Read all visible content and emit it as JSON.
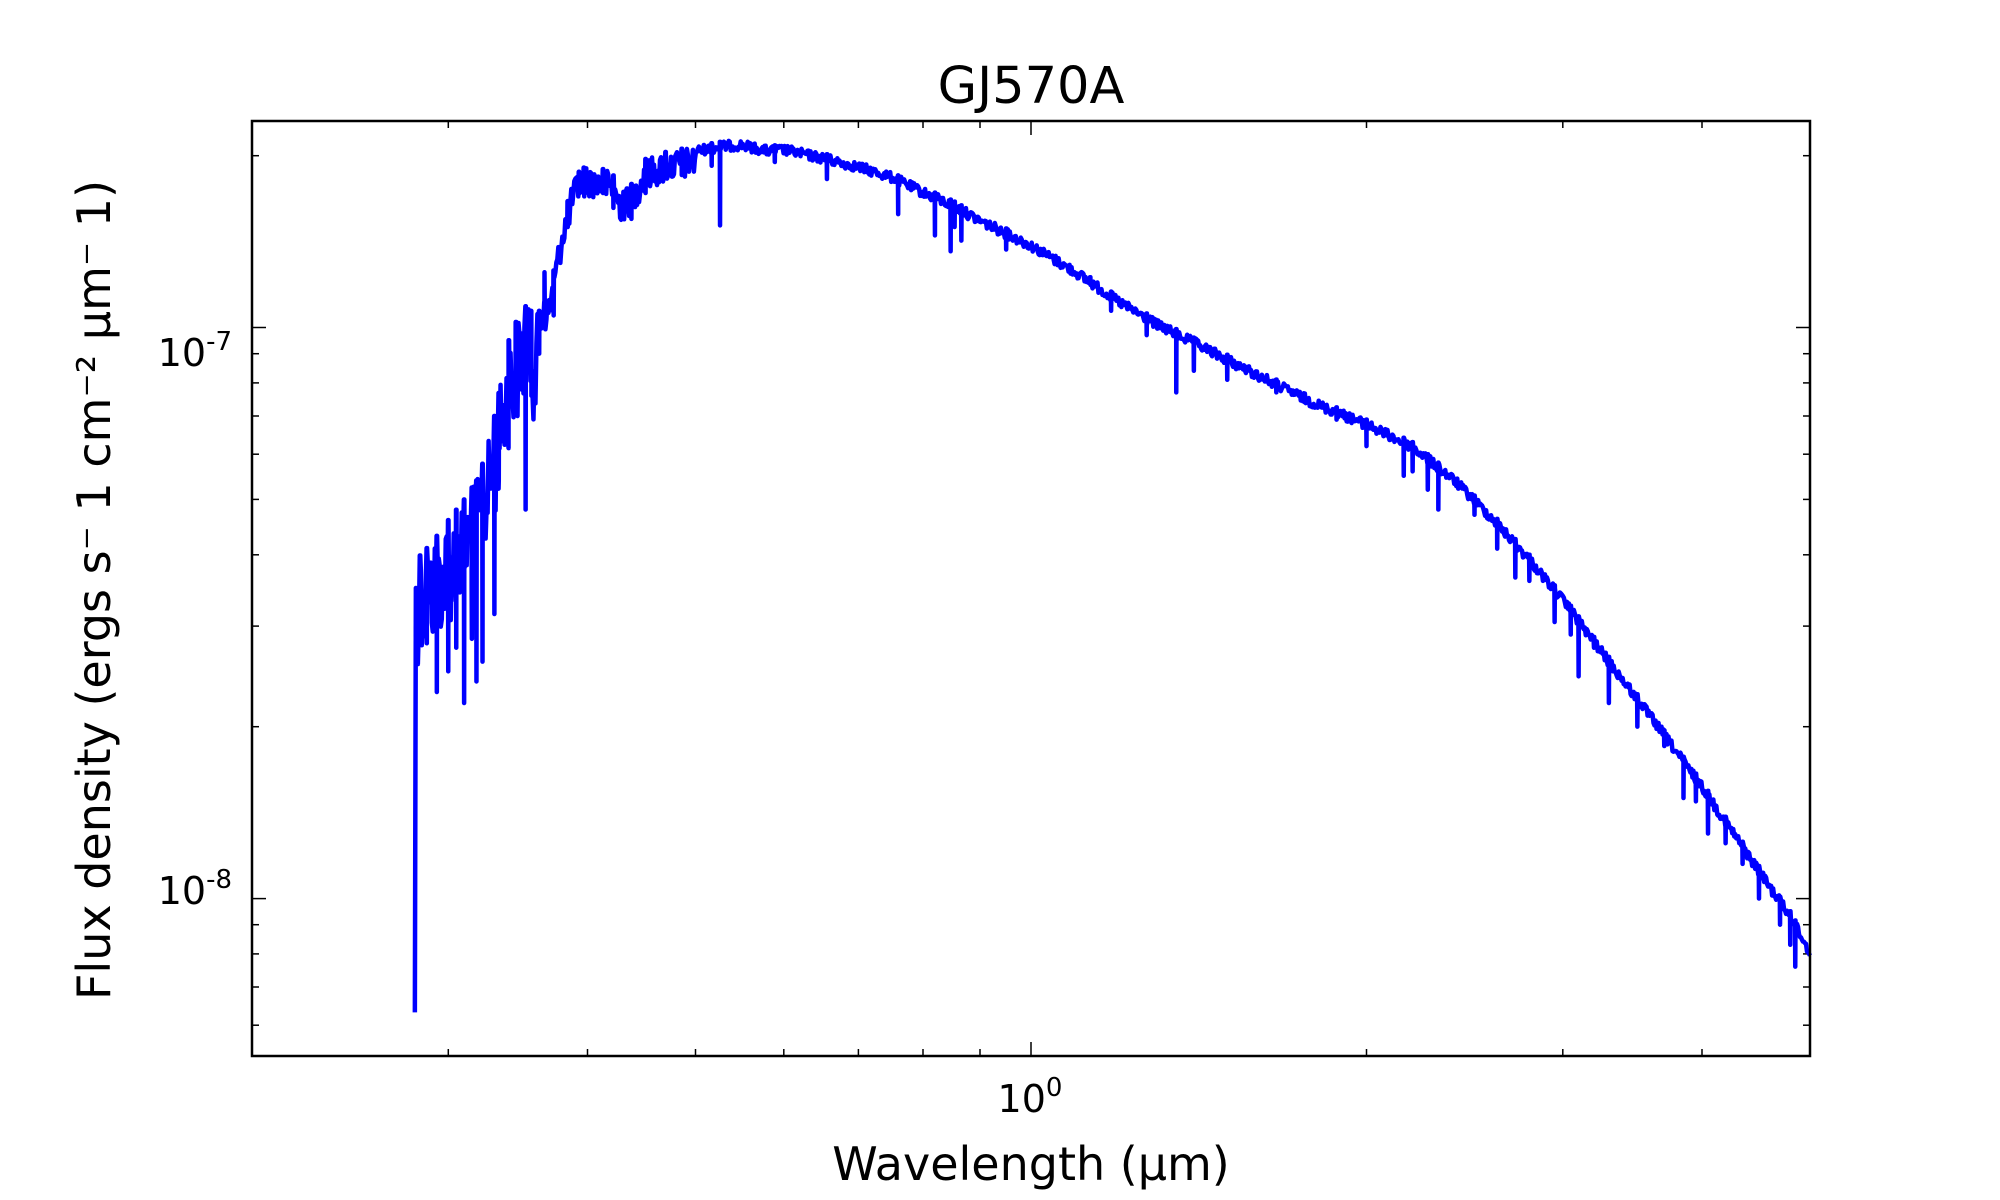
{
  "chart_data": {
    "type": "line",
    "title": "GJ570A",
    "xlabel": "Wavelength (μm)",
    "ylabel": "Flux density (ergs s⁻ 1 cm⁻² μm⁻ 1)",
    "xscale": "log",
    "yscale": "log",
    "xlim": [
      0.2,
      5.0
    ],
    "ylim": [
      5.3e-09,
      2.3e-07
    ],
    "grid": false,
    "legend": "none",
    "x_tick_labels": [
      {
        "value": 1.0,
        "base": "10",
        "exp": "0"
      }
    ],
    "y_tick_labels": [
      {
        "value": 1e-07,
        "base": "10",
        "exp": "-7"
      },
      {
        "value": 1e-08,
        "base": "10",
        "exp": "-8"
      }
    ],
    "series": [
      {
        "color": "#0000ff",
        "continuum": [
          [
            0.28,
            3.9e-08
          ],
          [
            0.29,
            4.2e-08
          ],
          [
            0.3,
            4.6e-08
          ],
          [
            0.31,
            5e-08
          ],
          [
            0.32,
            5.5e-08
          ],
          [
            0.33,
            7e-08
          ],
          [
            0.34,
            9.5e-08
          ],
          [
            0.35,
            1.1e-07
          ],
          [
            0.36,
            1.05e-07
          ],
          [
            0.37,
            1.15e-07
          ],
          [
            0.38,
            1.55e-07
          ],
          [
            0.39,
            1.85e-07
          ],
          [
            0.4,
            1.93e-07
          ],
          [
            0.41,
            1.9e-07
          ],
          [
            0.42,
            1.88e-07
          ],
          [
            0.43,
            1.72e-07
          ],
          [
            0.44,
            1.8e-07
          ],
          [
            0.45,
            1.97e-07
          ],
          [
            0.47,
            2.03e-07
          ],
          [
            0.5,
            2.08e-07
          ],
          [
            0.53,
            2.12e-07
          ],
          [
            0.55,
            2.13e-07
          ],
          [
            0.58,
            2.08e-07
          ],
          [
            0.6,
            2.09e-07
          ],
          [
            0.65,
            2.02e-07
          ],
          [
            0.7,
            1.95e-07
          ],
          [
            0.75,
            1.87e-07
          ],
          [
            0.8,
            1.76e-07
          ],
          [
            0.85,
            1.67e-07
          ],
          [
            0.9,
            1.57e-07
          ],
          [
            1.0,
            1.42e-07
          ],
          [
            1.1,
            1.27e-07
          ],
          [
            1.2,
            1.13e-07
          ],
          [
            1.3,
            1.03e-07
          ],
          [
            1.4,
            9.6e-08
          ],
          [
            1.6,
            8.4e-08
          ],
          [
            1.8,
            7.5e-08
          ],
          [
            2.0,
            6.9e-08
          ],
          [
            2.2,
            6.3e-08
          ],
          [
            2.4,
            5.5e-08
          ],
          [
            2.6,
            4.7e-08
          ],
          [
            2.8,
            4e-08
          ],
          [
            3.0,
            3.4e-08
          ],
          [
            3.3,
            2.65e-08
          ],
          [
            3.6,
            2.12e-08
          ],
          [
            4.0,
            1.6e-08
          ],
          [
            4.3,
            1.3e-08
          ],
          [
            4.6,
            1.07e-08
          ],
          [
            4.8,
            9.5e-09
          ],
          [
            5.0,
            8.2e-09
          ]
        ],
        "absorption_lines": [
          [
            0.283,
            3.3e-08
          ],
          [
            0.287,
            2.8e-08
          ],
          [
            0.293,
            2.3e-08
          ],
          [
            0.3,
            2.5e-08
          ],
          [
            0.305,
            2.75e-08
          ],
          [
            0.31,
            2.2e-08
          ],
          [
            0.315,
            2.85e-08
          ],
          [
            0.318,
            2.4e-08
          ],
          [
            0.322,
            2.6e-08
          ],
          [
            0.33,
            3.15e-08
          ],
          [
            0.333,
            5.4e-08
          ],
          [
            0.34,
            8e-08
          ],
          [
            0.345,
            8.6e-08
          ],
          [
            0.352,
            4.8e-08
          ],
          [
            0.356,
            8.3e-08
          ],
          [
            0.362,
            9e-08
          ],
          [
            0.366,
            1.25e-07
          ],
          [
            0.373,
            1.05e-07
          ],
          [
            0.384,
            1.5e-07
          ],
          [
            0.393,
            1.72e-07
          ],
          [
            0.397,
            1.72e-07
          ],
          [
            0.413,
            1.72e-07
          ],
          [
            0.422,
            1.62e-07
          ],
          [
            0.431,
            1.55e-07
          ],
          [
            0.434,
            1.62e-07
          ],
          [
            0.438,
            1.55e-07
          ],
          [
            0.451,
            1.72e-07
          ],
          [
            0.47,
            1.88e-07
          ],
          [
            0.486,
            1.85e-07
          ],
          [
            0.517,
            1.92e-07
          ],
          [
            0.526,
            1.51e-07
          ],
          [
            0.589,
            1.95e-07
          ],
          [
            0.656,
            1.82e-07
          ],
          [
            0.76,
            1.58e-07
          ],
          [
            0.82,
            1.45e-07
          ],
          [
            0.847,
            1.36e-07
          ],
          [
            0.854,
            1.5e-07
          ],
          [
            0.866,
            1.42e-07
          ],
          [
            0.95,
            1.37e-07
          ],
          [
            1.13,
            1.2e-07
          ],
          [
            1.18,
            1.07e-07
          ],
          [
            1.27,
            9.7e-08
          ],
          [
            1.35,
            7.7e-08
          ],
          [
            1.4,
            8.4e-08
          ],
          [
            1.5,
            8.1e-08
          ],
          [
            1.66,
            7.7e-08
          ],
          [
            1.76,
            7.4e-08
          ],
          [
            1.88,
            6.9e-08
          ],
          [
            2.0,
            6.2e-08
          ],
          [
            2.16,
            5.5e-08
          ],
          [
            2.2,
            5.6e-08
          ],
          [
            2.27,
            5.2e-08
          ],
          [
            2.32,
            4.8e-08
          ],
          [
            2.5,
            4.7e-08
          ],
          [
            2.62,
            4.1e-08
          ],
          [
            2.72,
            3.65e-08
          ],
          [
            2.8,
            3.6e-08
          ],
          [
            2.95,
            3.05e-08
          ],
          [
            3.05,
            2.9e-08
          ],
          [
            3.1,
            2.45e-08
          ],
          [
            3.2,
            2.75e-08
          ],
          [
            3.3,
            2.2e-08
          ],
          [
            3.5,
            2e-08
          ],
          [
            3.7,
            1.85e-08
          ],
          [
            3.85,
            1.5e-08
          ],
          [
            3.95,
            1.48e-08
          ],
          [
            4.05,
            1.3e-08
          ],
          [
            4.2,
            1.25e-08
          ],
          [
            4.35,
            1.15e-08
          ],
          [
            4.5,
            1e-08
          ],
          [
            4.7,
            9e-09
          ],
          [
            4.8,
            8.3e-09
          ],
          [
            4.85,
            7.6e-09
          ]
        ]
      }
    ]
  }
}
